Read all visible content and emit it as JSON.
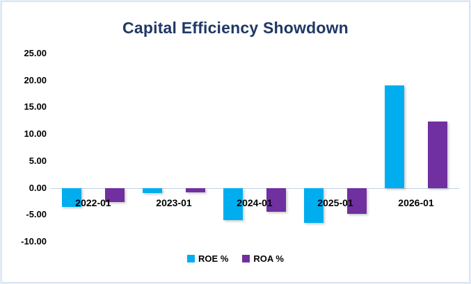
{
  "title": "Capital Efficiency Showdown",
  "colors": {
    "roe": "#00aeef",
    "roa": "#7030a0",
    "title_text": "#1f3864",
    "axis_text": "#000000",
    "zero_line": "#bfd0e8",
    "frame_border": "#dbe5f4",
    "background": "#ffffff"
  },
  "chart_data": {
    "type": "bar",
    "title": "Capital Efficiency Showdown",
    "categories": [
      "2022-01",
      "2023-01",
      "2024-01",
      "2025-01",
      "2026-01"
    ],
    "series": [
      {
        "name": "ROE %",
        "color": "#00aeef",
        "values": [
          -3.5,
          -1.0,
          -6.0,
          -6.5,
          19.0
        ]
      },
      {
        "name": "ROA %",
        "color": "#7030a0",
        "values": [
          -2.7,
          -0.8,
          -4.5,
          -4.8,
          12.4
        ]
      }
    ],
    "ylim": [
      -10,
      25
    ],
    "ytick_labels": [
      "25.00",
      "20.00",
      "15.00",
      "10.00",
      "5.00",
      "0.00",
      "-5.00",
      "-10.00"
    ],
    "ytick_values": [
      25,
      20,
      15,
      10,
      5,
      0,
      -5,
      -10
    ],
    "grid": "zero-line-only",
    "legend_position": "bottom",
    "legend": [
      "ROE %",
      "ROA %"
    ]
  }
}
